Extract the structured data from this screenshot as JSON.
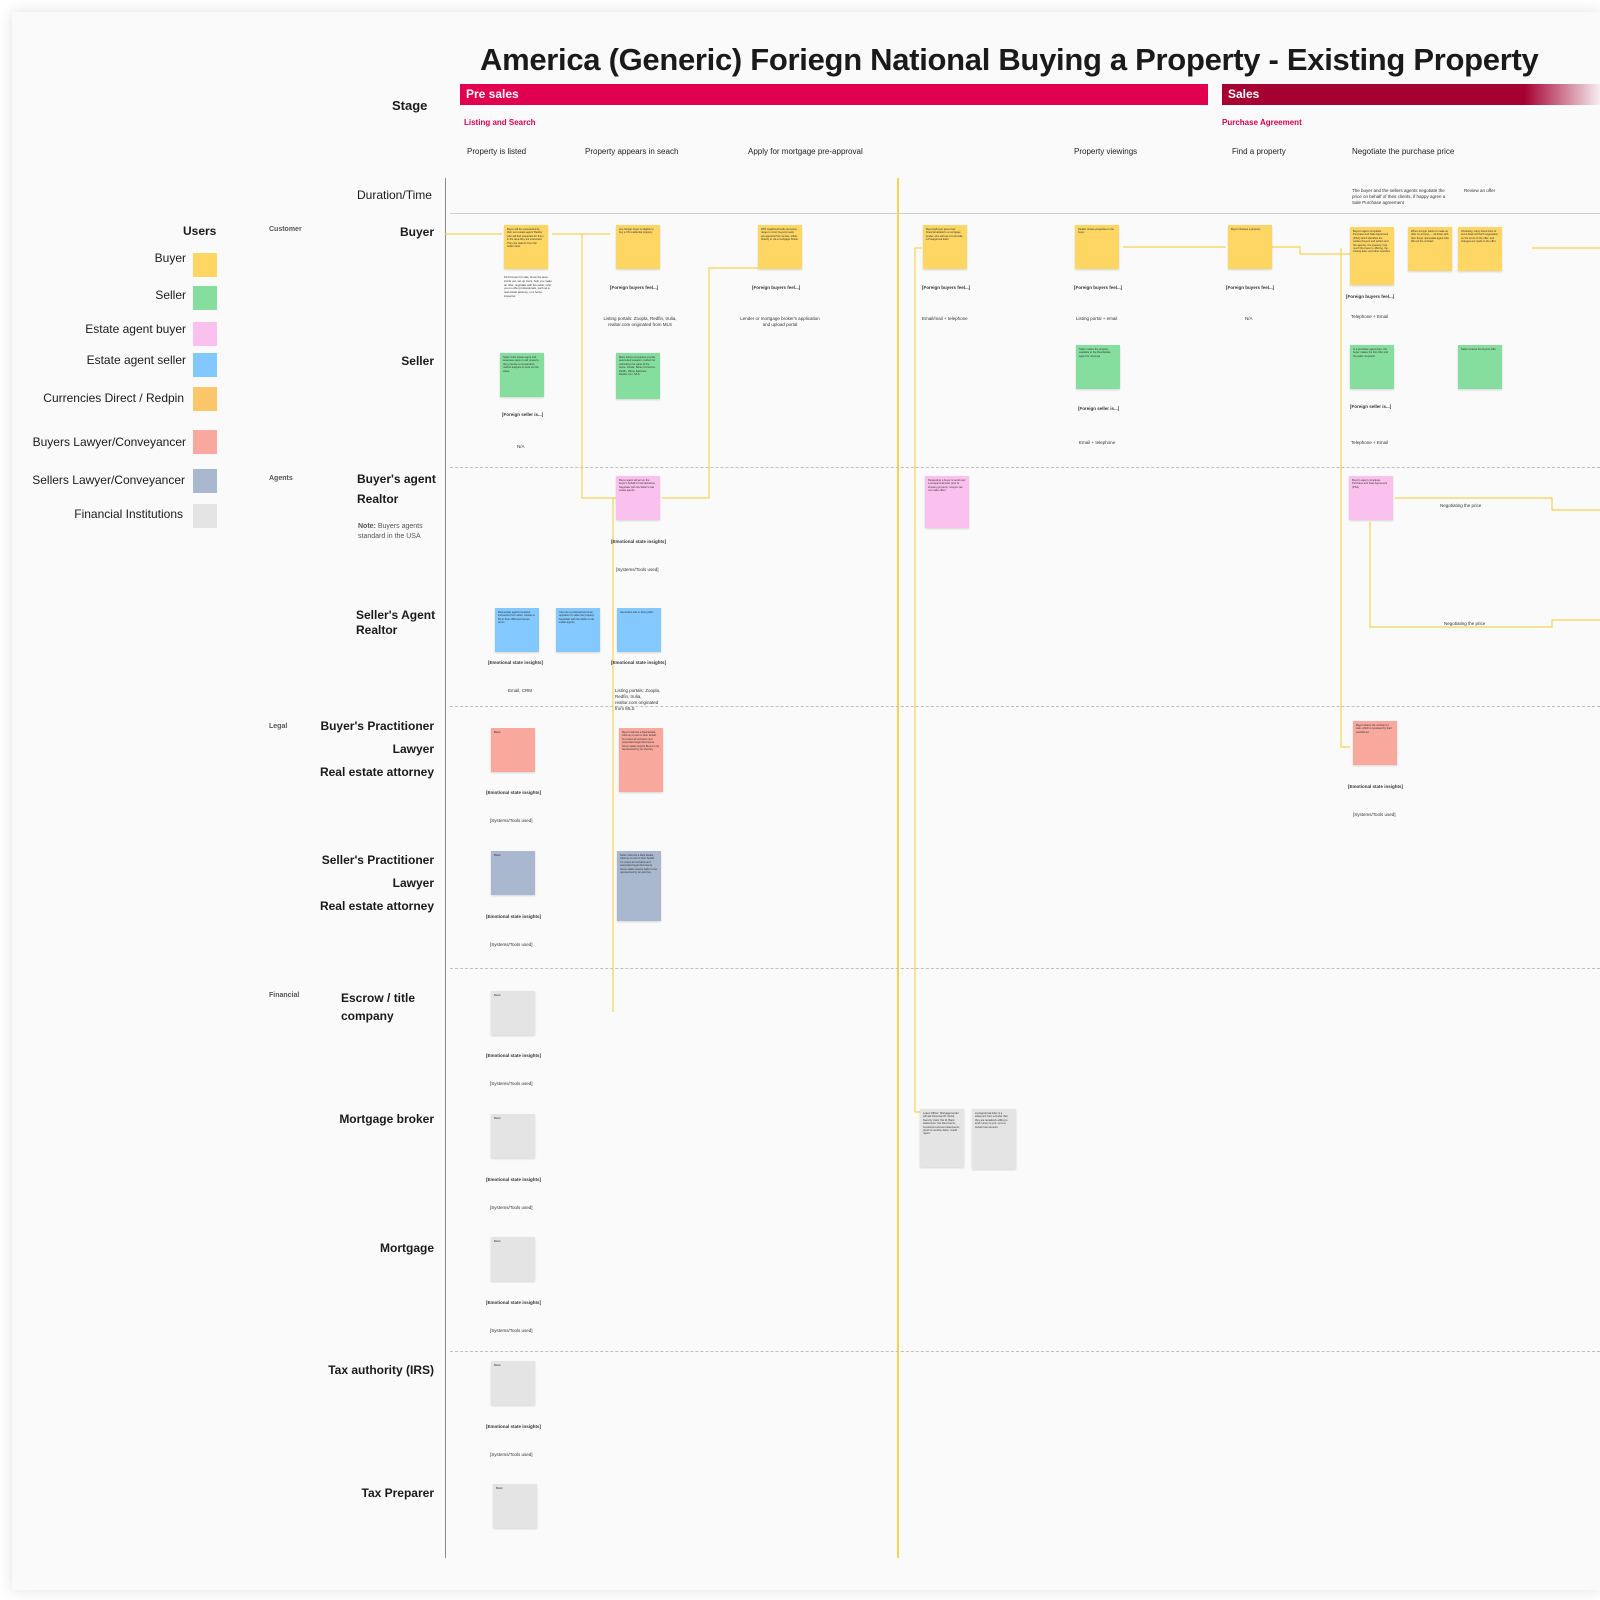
{
  "title": "America (Generic) Foriegn National Buying a Property - Existing Property",
  "stage_label": "Stage",
  "stages": [
    {
      "label": "Pre sales",
      "color": "#e0004f"
    },
    {
      "label": "Sales",
      "color": "#a60032"
    }
  ],
  "phases": [
    "Listing and Search",
    "Purchase Agreement"
  ],
  "steps": [
    "Property is listed",
    "Property appears in seach",
    "Apply for  mortgage pre-approval",
    "Property viewings",
    "Find a property",
    "Negotiate the purchase price"
  ],
  "duration_label": "Duration/Time",
  "negotiate_notes": [
    "The buyer and the sellers agents negotiate the price on behalf of their clients, if happy agree a Sale Purchase agreement",
    "Review an offer"
  ],
  "users_heading": "Users",
  "legend": [
    {
      "label": "Buyer",
      "color": "#fdd663"
    },
    {
      "label": "Seller",
      "color": "#86de9e"
    },
    {
      "label": "Estate agent buyer",
      "color": "#fbc1ee"
    },
    {
      "label": "Estate agent seller",
      "color": "#83c8ff"
    },
    {
      "label": "Currencies Direct / Redpin",
      "color": "#fcc66a"
    },
    {
      "label": "Buyers Lawyer/Conveyancer",
      "color": "#f8a89c"
    },
    {
      "label": "Sellers Lawyer/Conveyancer",
      "color": "#a9b8cf"
    },
    {
      "label": "Financial Institutions",
      "color": "#e4e4e4"
    }
  ],
  "groups": [
    "Customer",
    "Agents",
    "Legal",
    "Financial"
  ],
  "lanes": {
    "buyer": "Buyer",
    "seller": "Seller",
    "buyers_agent": [
      "Buyer's agent",
      "Realtor"
    ],
    "note_label": "Note:",
    "note_text": "Buyers agents standard in the USA",
    "sellers_agent": [
      "Seller's Agent",
      "Realtor"
    ],
    "buyers_practitioner": [
      "Buyer's Practitioner",
      "Lawyer",
      "Real estate attorney"
    ],
    "sellers_practitioner": [
      "Seller's Practitioner",
      "Lawyer",
      "Real estate attorney"
    ],
    "escrow": [
      "Escrow / title",
      "company"
    ],
    "mortgage_broker": "Mortgage broker",
    "mortgage": "Mortgage",
    "tax_authority": "Tax authority (IRS)",
    "tax_preparer": "Tax Preparer"
  },
  "captions": {
    "foreign_buyers": "[Foreign buyers feel...]",
    "foreign_seller": "[Foreign seller is...]",
    "emotional": "[Emotional state insights]",
    "systems": "[Systems/Tools used]",
    "na": "N/A",
    "listing_portals": "Listing portals: Zoopla, Redfin, trulia, realtor.com originated from MLS",
    "listing_portals_agent": "Listing portals: Zoopla, Redfin, trulia, realtor.com originated from MLS",
    "lender": "Lender or mortgage broker's application and upload portal",
    "email_phone": "Email/mail + telephone",
    "listing_email": "Listing portal + email",
    "email_crm": "Email, CRM",
    "phone_email": "Telephone + Email",
    "email_telephone": "Email + telephone",
    "negotiating": "Negotiating the price",
    "blank": "Blank"
  },
  "notes": {
    "b1": "Buyer will be represented by their own estate agent/ Realtor who will find properties for them in the area they are interested. They are paid for from the sellers fees.",
    "b1b": "Find homes for sale, know the area inside out, set up tours, help you make an offer, negotiate with the seller, refer you to other professionals, such as a real estate attorney, or a home inspector.",
    "b2": "Any foreign buyer is eligible to buy a US residential property",
    "b3": "With neighbourhoods and price range in mind, buyer(s) seek pre-approval from lender, either directly or via a mortgage broker",
    "b4": "Buyer(s)/buyer gives their financial details to a mortgage lender, who will use it to provide a Preapproval letter",
    "b5": "Realtor shows properties to the buyer",
    "b6": "Buyer chooses a property",
    "b7": "Buyer's agent completes Purchase and Sale Agreement (PSA) which identifies the parties (buyers and sellers and the agents), the property, how much the buyer is offering, the closing date, and other specifics.",
    "b8": "When a buyer wants to make an offer on a home, ... sit down with their buyer real estate agent who fills out the contract.",
    "b9": "Obviously, many times there is some back and forth negotiation on the terms of the offer, and changes are made to the offer.",
    "s1": "Seller visits estate agent and assesses steps to sell property - they prepare a comparative market analysis to work out the value.",
    "s2": "Many listing companies provide automated valuation models for estimating the value of the home. Chase, Bank of America, Redfin, Zillow, Eastview, Realtor.com, MLS",
    "s3": "Seller makes the property available to the Real Estate Agent for viewings",
    "s4": "In a purchase agreement, the buyer makes the first offer and the seller responds.",
    "s5": "Seller reviews the buyers offer",
    "a1": "Buyer agent will act on the buyer's behalf in final decisions. Negotiate with the Seller's real estate agents",
    "a2": "Requesting a buyer to send over a preapproval letter prior to showing property; a buyer can not make offers.",
    "a3": "Buyer's agent completes Purchase and Sale Agreement (PSA)",
    "sa1": "Real estate agents received instruction from seller, creates a file in their CRM and issues terms",
    "sa2": "Can use a professional home appraiser to value the property. Negotiate with the Seller's real estate agents",
    "sa3": "Generates ads or listing offer",
    "l1": "Buyer instructs a Real Estate Attorney to act on their behalf. To review all contracts and associated legal documents. Some states require Buyer to be represented by an attorney.",
    "l2": "Buyer shares the contract of sale, which is reviewed by their practitioner.",
    "sl1": "Seller instructs a Real Estate Attorney to act on their behalf. To review all contracts and associated legal documents. Some states require Seller to be represented by an attorney.",
    "m1": "Loans Officer: Mortgage lender will ask Personal ID, Social Security Card, Tax Id, Bank statements, Tax Documents, Investment account statements, proof of monthly debts. Credit report.",
    "m2": "A preapproval letter is a statement from a lender that they are tentatively willing to lend money to you, up to a certain loan amount."
  }
}
